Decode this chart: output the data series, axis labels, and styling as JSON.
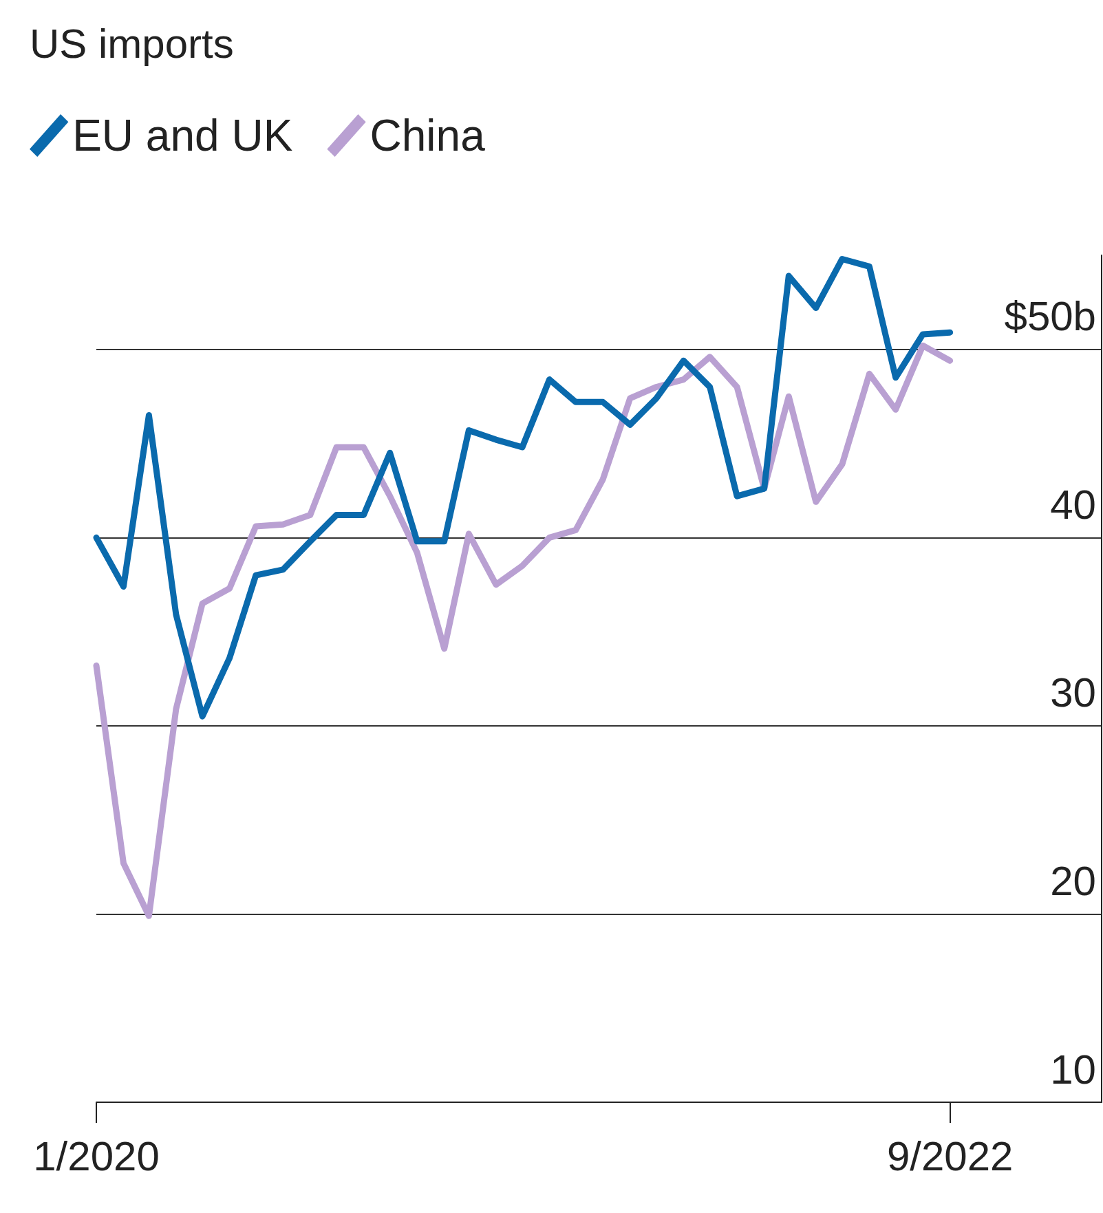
{
  "chart_data": {
    "type": "line",
    "title": "US imports",
    "x": [
      "2020-01",
      "2020-02",
      "2020-03",
      "2020-04",
      "2020-05",
      "2020-06",
      "2020-07",
      "2020-08",
      "2020-09",
      "2020-10",
      "2020-11",
      "2020-12",
      "2021-01",
      "2021-02",
      "2021-03",
      "2021-04",
      "2021-05",
      "2021-06",
      "2021-07",
      "2021-08",
      "2021-09",
      "2021-10",
      "2021-11",
      "2021-12",
      "2022-01",
      "2022-02",
      "2022-03",
      "2022-04",
      "2022-05",
      "2022-06",
      "2022-07",
      "2022-08",
      "2022-09"
    ],
    "series": [
      {
        "name": "EU and UK",
        "color": "#0a6aad",
        "values": [
          40.0,
          37.4,
          46.5,
          35.9,
          30.5,
          33.6,
          38.0,
          38.3,
          39.8,
          41.2,
          41.2,
          44.5,
          39.8,
          39.8,
          45.7,
          45.2,
          44.8,
          48.4,
          47.2,
          47.2,
          46.0,
          47.4,
          49.4,
          48.0,
          42.2,
          42.6,
          53.9,
          52.2,
          54.8,
          54.4,
          48.5,
          50.8,
          50.9
        ]
      },
      {
        "name": "China",
        "color": "#b9a0d2",
        "values": [
          33.2,
          22.7,
          19.9,
          30.9,
          36.5,
          37.3,
          40.6,
          40.7,
          41.2,
          44.8,
          44.8,
          42.2,
          39.2,
          34.1,
          40.2,
          37.5,
          38.5,
          40.0,
          40.4,
          43.1,
          47.4,
          48.0,
          48.4,
          49.6,
          48.0,
          42.6,
          47.5,
          41.9,
          43.9,
          48.7,
          46.8,
          50.2,
          49.4
        ]
      }
    ],
    "xlim": [
      "2020-01-01",
      "2023-02-21"
    ],
    "xticks": [
      {
        "value": "2020-01",
        "label": "1/2020"
      },
      {
        "value": "2022-09",
        "label": "9/2022"
      }
    ],
    "ylim": [
      10,
      55
    ],
    "yticks": [
      10,
      20,
      30,
      40,
      {
        "value": 50,
        "label": "$50b"
      }
    ],
    "grid": "y",
    "legend": "top left",
    "marker": "none",
    "line_style": "solid"
  }
}
